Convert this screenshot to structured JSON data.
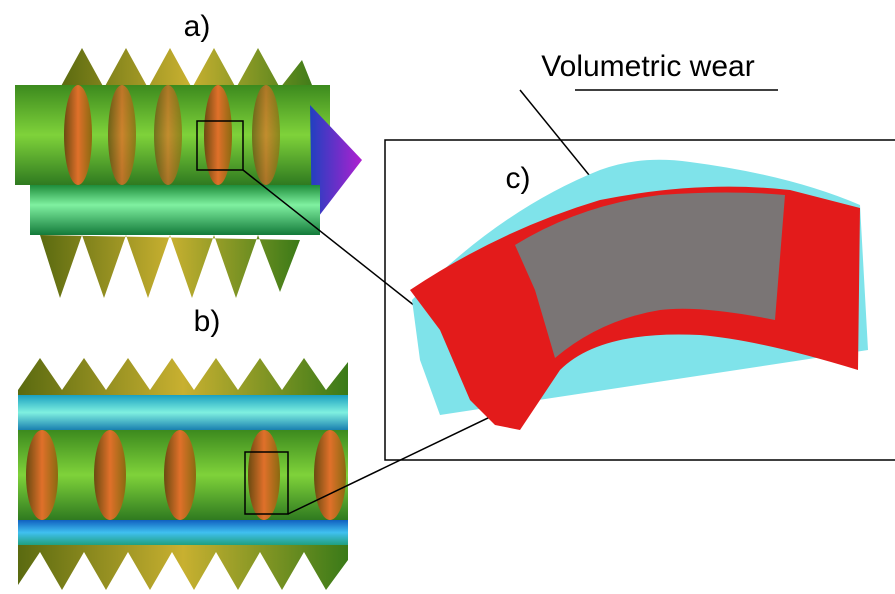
{
  "labels": {
    "a": "a)",
    "b": "b)",
    "c": "c)"
  },
  "callout": "Volumetric wear"
}
